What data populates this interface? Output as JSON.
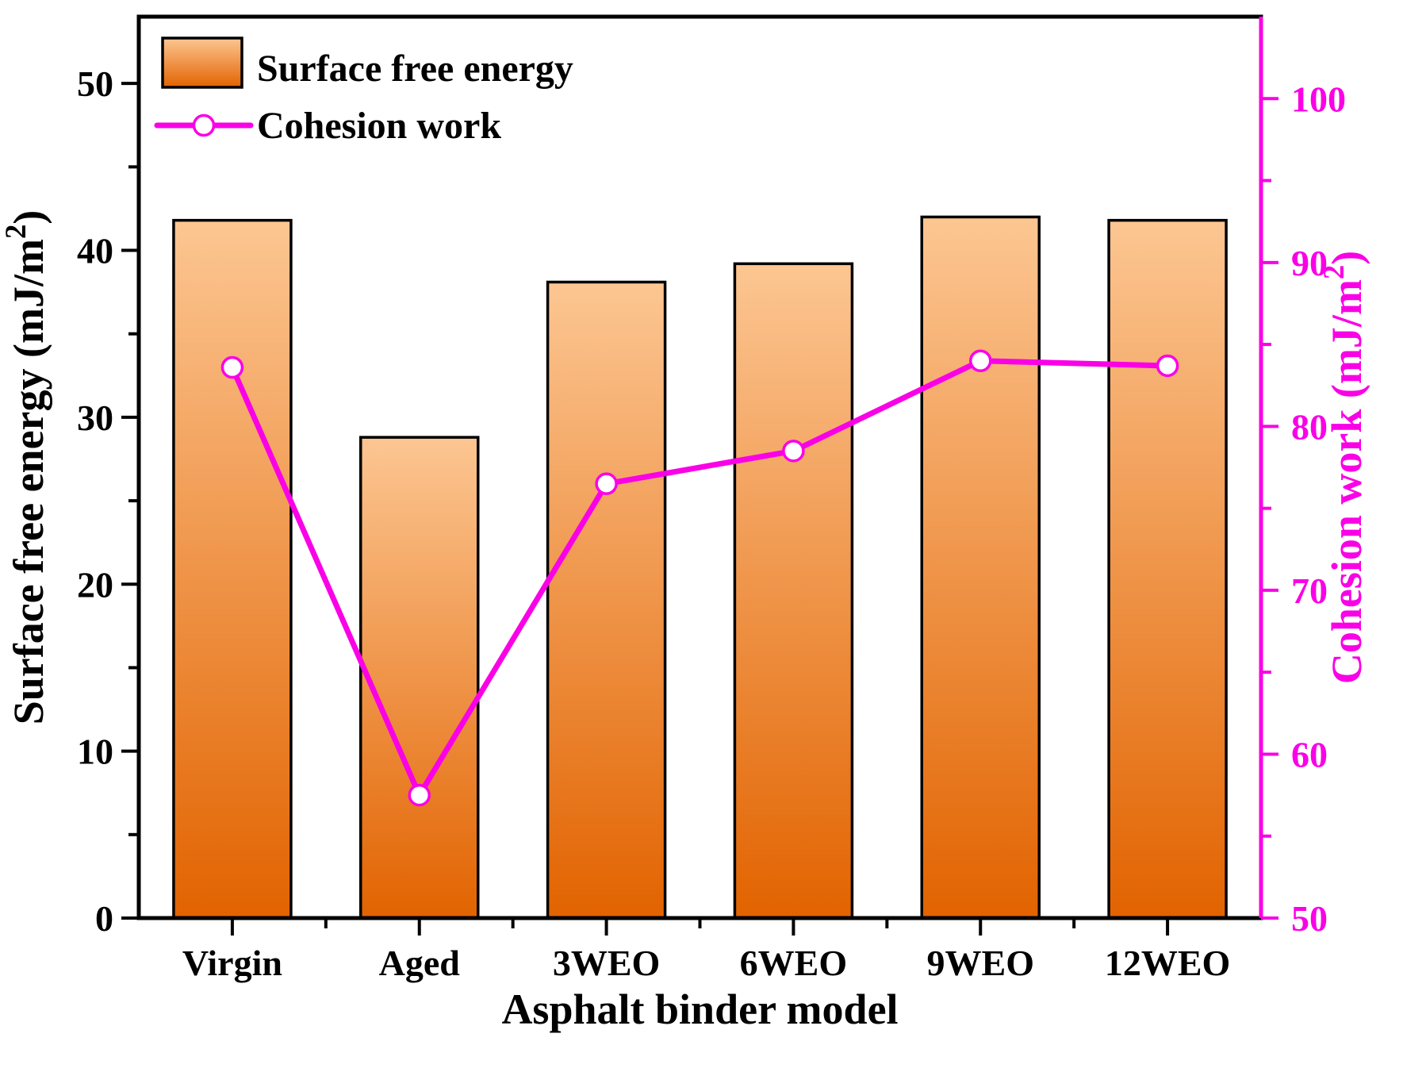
{
  "chart_data": {
    "type": "bar+line",
    "categories": [
      "Virgin",
      "Aged",
      "3WEO",
      "6WEO",
      "9WEO",
      "12WEO"
    ],
    "series": [
      {
        "name": "Surface free energy",
        "type": "bar",
        "axis": "left",
        "values": [
          41.8,
          28.8,
          38.1,
          39.2,
          42.0,
          41.8
        ]
      },
      {
        "name": "Cohesion work",
        "type": "line",
        "axis": "right",
        "values": [
          83.6,
          57.5,
          76.5,
          78.5,
          84.0,
          83.7
        ]
      }
    ],
    "xlabel": "Asphalt binder model",
    "left_axis": {
      "label": "Surface free energy (mJ/m²)",
      "min": 0,
      "max": 54,
      "major_ticks": [
        0,
        10,
        20,
        30,
        40,
        50
      ],
      "minor_ticks": [
        5,
        15,
        25,
        35,
        45
      ]
    },
    "right_axis": {
      "label": "Cohesion work (mJ/m²)",
      "min": 50,
      "max": 105,
      "major_ticks": [
        50,
        60,
        70,
        80,
        90,
        100
      ],
      "minor_ticks": [
        55,
        65,
        75,
        85,
        95
      ]
    },
    "legend": [
      {
        "label": "Surface free energy",
        "symbol": "gradient-bar-swatch"
      },
      {
        "label": "Cohesion work",
        "symbol": "line-with-open-circle"
      }
    ],
    "grid": false,
    "legend_position": "top-left-inside",
    "colors": {
      "bar_gradient_top": "#FCC692",
      "bar_gradient_bottom": "#E26300",
      "bar_border": "#000000",
      "magenta": "#FA00E6",
      "marker_fill": "#FFFFFF",
      "axis_black": "#000000",
      "background": "#FFFFFF"
    }
  }
}
